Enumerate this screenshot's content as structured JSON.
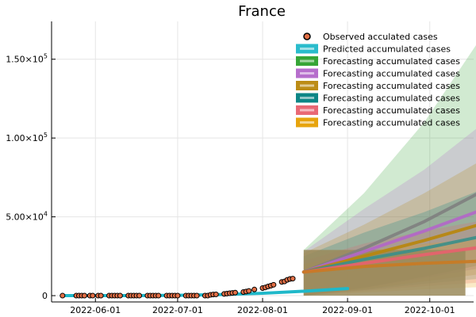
{
  "chart_data": {
    "type": "line",
    "title": "France",
    "xlabel": "",
    "ylabel": "",
    "grid": true,
    "legend_position": "top-right",
    "x_range": [
      "2022-05-16",
      "2022-10-17"
    ],
    "y_range": [
      -4000,
      174000
    ],
    "x_ticks": [
      {
        "date": "2022-06-01",
        "label": "2022-06-01"
      },
      {
        "date": "2022-07-01",
        "label": "2022-07-01"
      },
      {
        "date": "2022-08-01",
        "label": "2022-08-01"
      },
      {
        "date": "2022-09-01",
        "label": "2022-09-01"
      },
      {
        "date": "2022-10-01",
        "label": "2022-10-01"
      }
    ],
    "y_ticks": [
      {
        "value": 0,
        "mantissa": "0",
        "exponent": ""
      },
      {
        "value": 50000,
        "mantissa": "5.00×10",
        "exponent": "4"
      },
      {
        "value": 100000,
        "mantissa": "1.00×10",
        "exponent": "5"
      },
      {
        "value": 150000,
        "mantissa": "1.50×10",
        "exponent": "5"
      }
    ],
    "observed": {
      "name": "Observed acculated cases",
      "color": "#E26F46",
      "points": [
        {
          "x": "2022-05-20",
          "y": 0
        },
        {
          "x": "2022-05-25",
          "y": 0
        },
        {
          "x": "2022-05-26",
          "y": 0
        },
        {
          "x": "2022-05-27",
          "y": 0
        },
        {
          "x": "2022-05-28",
          "y": 0
        },
        {
          "x": "2022-05-30",
          "y": 0
        },
        {
          "x": "2022-05-31",
          "y": 0
        },
        {
          "x": "2022-06-02",
          "y": 0
        },
        {
          "x": "2022-06-03",
          "y": 0
        },
        {
          "x": "2022-06-06",
          "y": 0
        },
        {
          "x": "2022-06-07",
          "y": 0
        },
        {
          "x": "2022-06-08",
          "y": 0
        },
        {
          "x": "2022-06-09",
          "y": 0
        },
        {
          "x": "2022-06-10",
          "y": 0
        },
        {
          "x": "2022-06-13",
          "y": 0
        },
        {
          "x": "2022-06-14",
          "y": 0
        },
        {
          "x": "2022-06-15",
          "y": 0
        },
        {
          "x": "2022-06-16",
          "y": 0
        },
        {
          "x": "2022-06-17",
          "y": 0
        },
        {
          "x": "2022-06-20",
          "y": 0
        },
        {
          "x": "2022-06-21",
          "y": 0
        },
        {
          "x": "2022-06-22",
          "y": 0
        },
        {
          "x": "2022-06-23",
          "y": 0
        },
        {
          "x": "2022-06-24",
          "y": 0
        },
        {
          "x": "2022-06-27",
          "y": 0
        },
        {
          "x": "2022-06-28",
          "y": 0
        },
        {
          "x": "2022-06-29",
          "y": 0
        },
        {
          "x": "2022-06-30",
          "y": 0
        },
        {
          "x": "2022-07-01",
          "y": 0
        },
        {
          "x": "2022-07-04",
          "y": 0
        },
        {
          "x": "2022-07-05",
          "y": 0
        },
        {
          "x": "2022-07-06",
          "y": 0
        },
        {
          "x": "2022-07-07",
          "y": 0
        },
        {
          "x": "2022-07-08",
          "y": 0
        },
        {
          "x": "2022-07-11",
          "y": 0
        },
        {
          "x": "2022-07-12",
          "y": 0
        },
        {
          "x": "2022-07-13",
          "y": 500
        },
        {
          "x": "2022-07-14",
          "y": 700
        },
        {
          "x": "2022-07-15",
          "y": 800
        },
        {
          "x": "2022-07-18",
          "y": 1100
        },
        {
          "x": "2022-07-19",
          "y": 1300
        },
        {
          "x": "2022-07-20",
          "y": 1500
        },
        {
          "x": "2022-07-21",
          "y": 1700
        },
        {
          "x": "2022-07-22",
          "y": 1900
        },
        {
          "x": "2022-07-25",
          "y": 2300
        },
        {
          "x": "2022-07-26",
          "y": 2600
        },
        {
          "x": "2022-07-27",
          "y": 3000
        },
        {
          "x": "2022-07-29",
          "y": 3900
        },
        {
          "x": "2022-08-01",
          "y": 4800
        },
        {
          "x": "2022-08-02",
          "y": 5200
        },
        {
          "x": "2022-08-03",
          "y": 5800
        },
        {
          "x": "2022-08-04",
          "y": 6300
        },
        {
          "x": "2022-08-05",
          "y": 6900
        },
        {
          "x": "2022-08-08",
          "y": 8700
        },
        {
          "x": "2022-08-09",
          "y": 9000
        },
        {
          "x": "2022-08-10",
          "y": 10000
        },
        {
          "x": "2022-08-11",
          "y": 10600
        },
        {
          "x": "2022-08-12",
          "y": 10800
        }
      ]
    },
    "predicted": {
      "name": "Predicted accumulated cases",
      "color": "#1FB8C9",
      "points": [
        {
          "x": "2022-05-20",
          "y": 0
        },
        {
          "x": "2022-06-01",
          "y": 0
        },
        {
          "x": "2022-06-15",
          "y": 0
        },
        {
          "x": "2022-07-01",
          "y": 200
        },
        {
          "x": "2022-07-15",
          "y": 600
        },
        {
          "x": "2022-08-01",
          "y": 1500
        },
        {
          "x": "2022-08-15",
          "y": 2700
        },
        {
          "x": "2022-09-01",
          "y": 4500
        }
      ]
    },
    "forecasts": [
      {
        "name": "Forecasting accumulated cases",
        "line_color": "#7F7F7F",
        "band_color": "#2CA02C",
        "mean": [
          15000,
          30000,
          47000,
          67000
        ],
        "lower": [
          0,
          5000,
          12000,
          20000
        ],
        "upper": [
          29000,
          65000,
          110000,
          167000
        ]
      },
      {
        "name": "Forecasting accumulated cases",
        "line_color": "#B266C9",
        "band_color": "#B266C9",
        "mean": [
          15000,
          28000,
          41000,
          55000
        ],
        "lower": [
          0,
          5000,
          11000,
          18000
        ],
        "upper": [
          28000,
          55000,
          80000,
          110000
        ]
      },
      {
        "name": "Forecasting accumulated cases",
        "line_color": "#B8860B",
        "band_color": "#B8860B",
        "mean": [
          15000,
          25000,
          35000,
          46000
        ],
        "lower": [
          0,
          4000,
          9000,
          14000
        ],
        "upper": [
          27000,
          45000,
          65000,
          87000
        ]
      },
      {
        "name": "Forecasting accumulated cases",
        "line_color": "#3A8F8A",
        "band_color": "#008080",
        "mean": [
          15000,
          23000,
          30000,
          38000
        ],
        "lower": [
          0,
          3500,
          7500,
          11000
        ],
        "upper": [
          25000,
          40000,
          53000,
          68000
        ]
      },
      {
        "name": "Forecasting accumulated cases",
        "line_color": "#E8616E",
        "band_color": "#E8616E",
        "mean": [
          15000,
          20500,
          26000,
          31000
        ],
        "lower": [
          0,
          3000,
          6000,
          8500
        ],
        "upper": [
          22000,
          33000,
          41000,
          48000
        ]
      },
      {
        "name": "Forecasting accumulated cases",
        "line_color": "#C97A22",
        "band_color": "#E69F00",
        "mean": [
          15000,
          18500,
          20500,
          22000
        ],
        "lower": [
          0,
          2000,
          4000,
          5500
        ],
        "upper": [
          20000,
          28000,
          33000,
          36000
        ]
      }
    ],
    "forecast_x": [
      "2022-08-16",
      "2022-09-07",
      "2022-09-29",
      "2022-10-21"
    ],
    "forecast_window": {
      "start": "2022-08-16",
      "end": "2022-10-14",
      "lower": 0,
      "upper": 29000,
      "color": "#9A8A5A"
    }
  }
}
